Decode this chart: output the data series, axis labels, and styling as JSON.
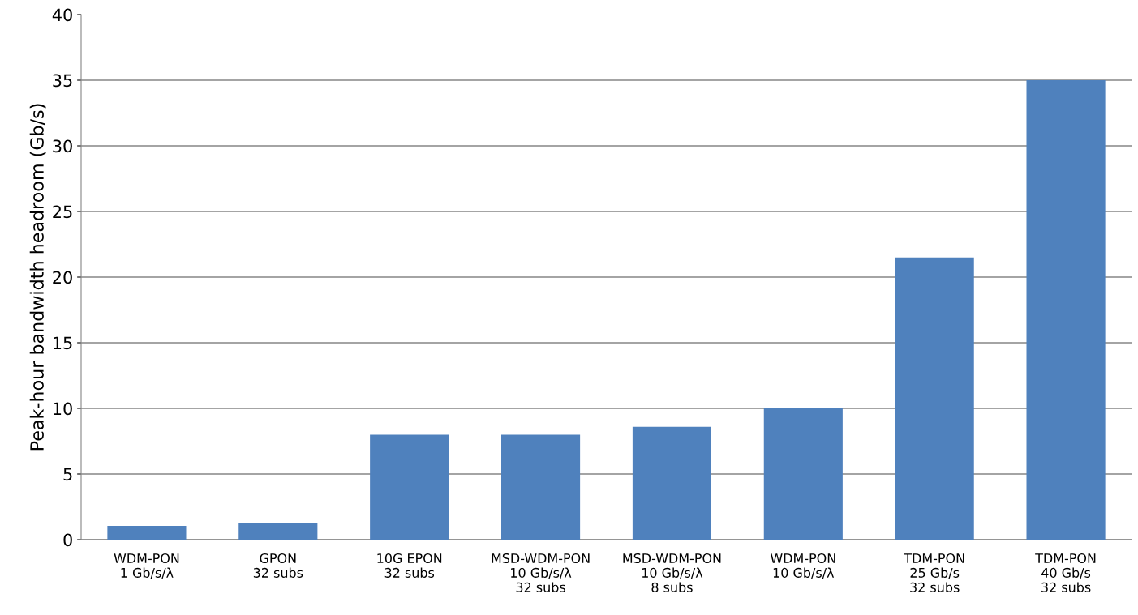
{
  "chart_data": {
    "type": "bar",
    "ylabel": "Peak-hour bandwidth headroom (Gb/s)",
    "categories": [
      "WDM-PON\n1 Gb/s/λ",
      "GPON\n32 subs",
      "10G EPON\n32 subs",
      "MSD-WDM-PON\n10 Gb/s/λ\n32 subs",
      "MSD-WDM-PON\n10 Gb/s/λ\n8 subs",
      "WDM-PON\n10 Gb/s/λ",
      "TDM-PON\n25 Gb/s\n32 subs",
      "TDM-PON\n40 Gb/s\n32 subs"
    ],
    "values": [
      1.05,
      1.3,
      8,
      8,
      8.6,
      10,
      21.5,
      35
    ],
    "color": "#4f81bd",
    "ylim": [
      0,
      40
    ],
    "yticks": [
      0,
      5,
      10,
      15,
      20,
      25,
      30,
      35,
      40
    ],
    "grid": "y"
  }
}
